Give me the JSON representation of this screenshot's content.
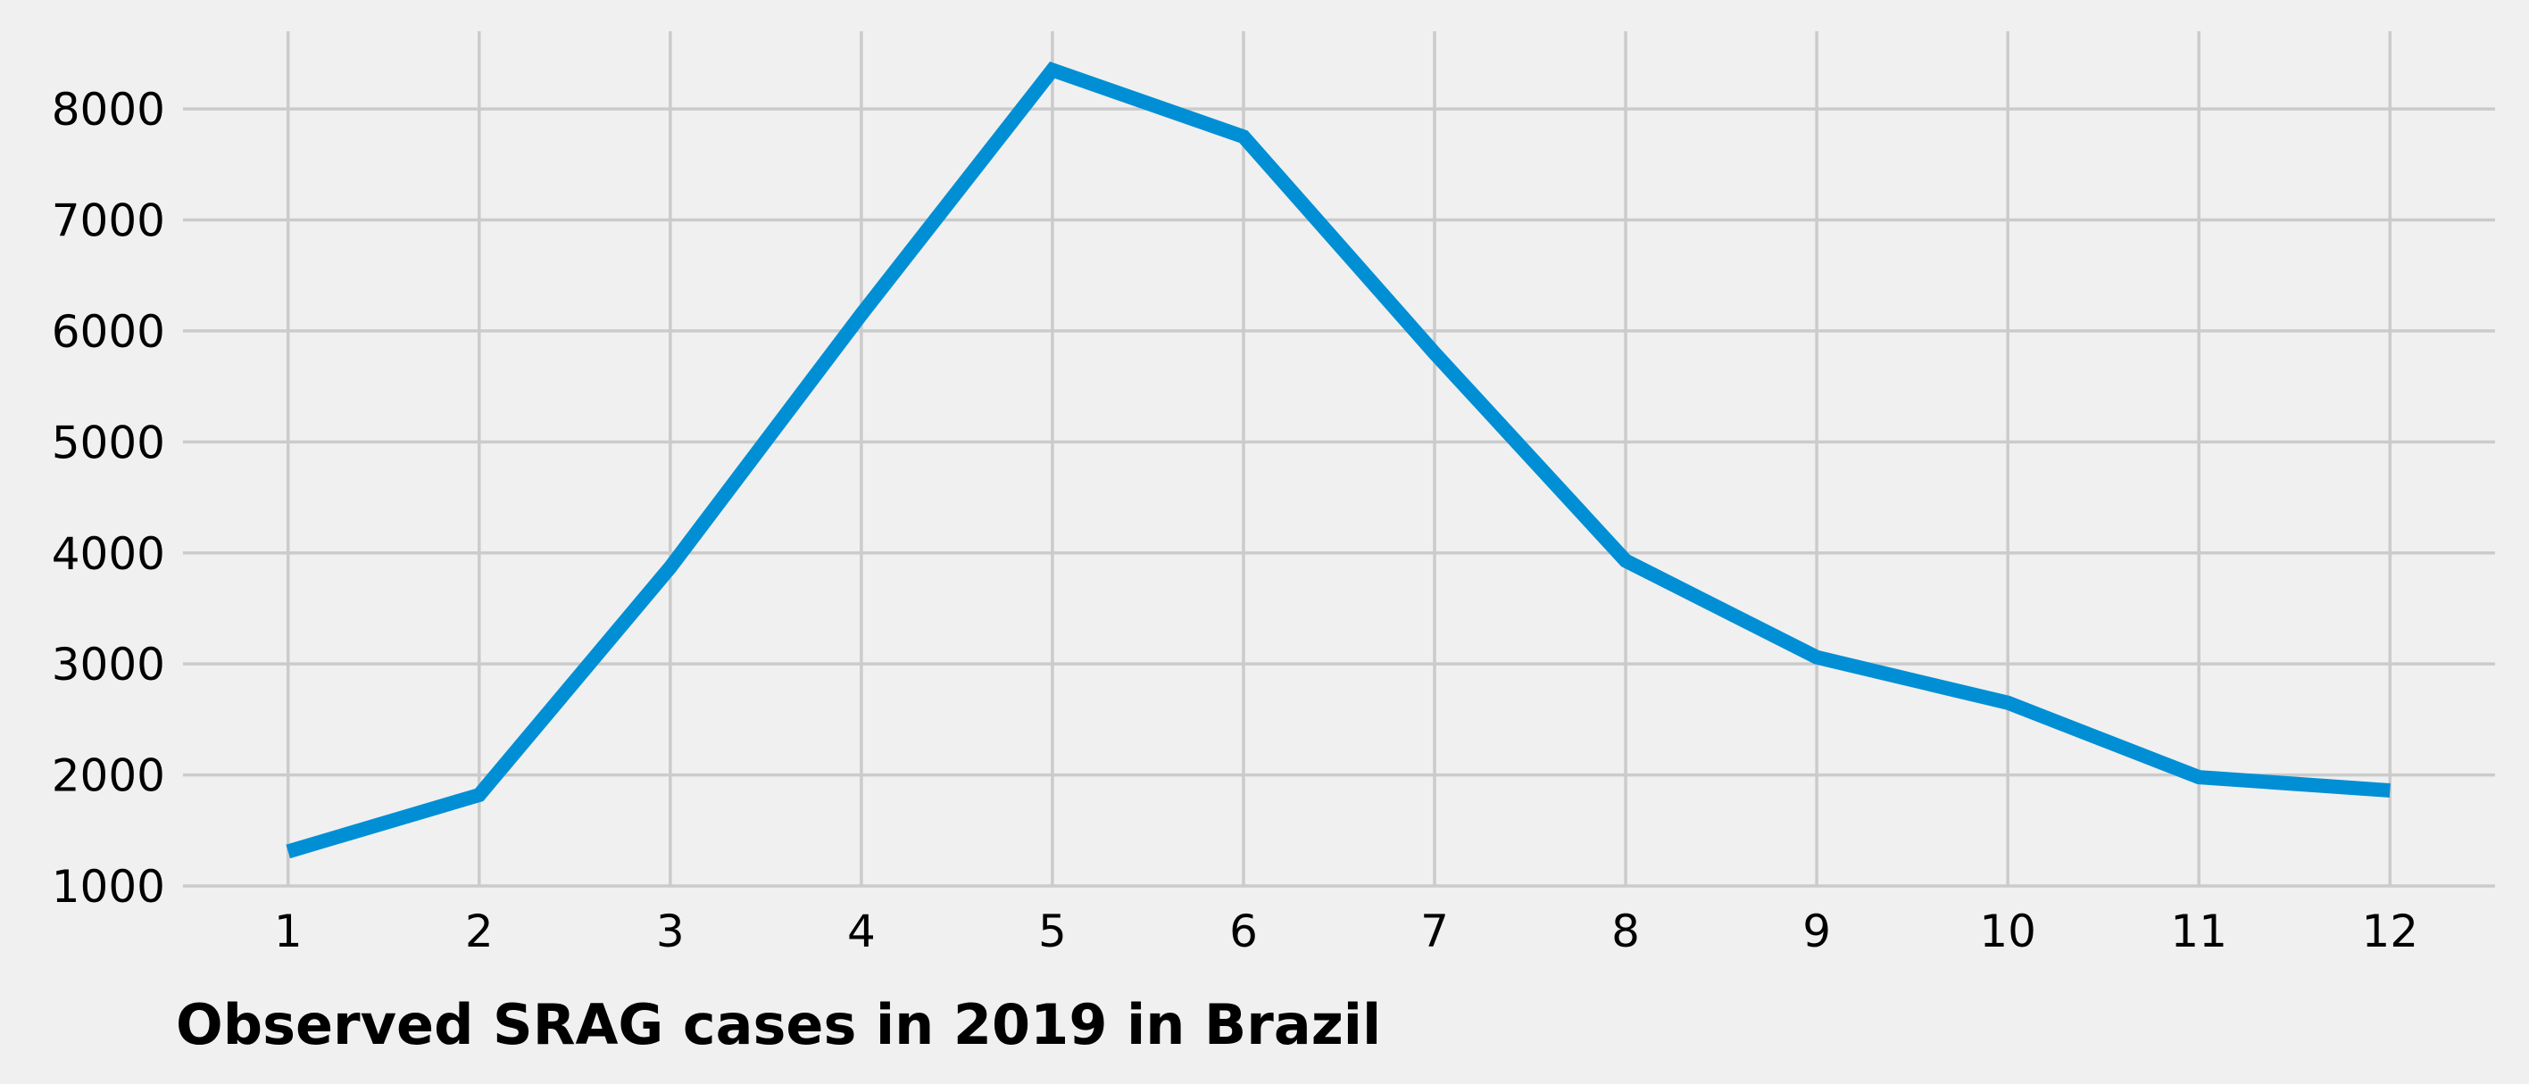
{
  "chart_data": {
    "type": "line",
    "title": "Observed SRAG cases in 2019 in Brazil",
    "xlabel": "",
    "ylabel": "",
    "x": [
      1,
      2,
      3,
      4,
      5,
      6,
      7,
      8,
      9,
      10,
      11,
      12
    ],
    "series": [
      {
        "values": [
          1310,
          1820,
          3870,
          6150,
          8350,
          7750,
          5800,
          3930,
          3060,
          2650,
          1980,
          1860
        ],
        "color": "#008fd5"
      }
    ],
    "xlim": [
      0.45,
      12.55
    ],
    "ylim": [
      1000,
      8700
    ],
    "x_ticks": [
      1,
      2,
      3,
      4,
      5,
      6,
      7,
      8,
      9,
      10,
      11,
      12
    ],
    "y_ticks": [
      1000,
      2000,
      3000,
      4000,
      5000,
      6000,
      7000,
      8000
    ],
    "grid": true,
    "legend": "none",
    "background": "#f0f0f0",
    "grid_color": "#cbcbcb"
  }
}
